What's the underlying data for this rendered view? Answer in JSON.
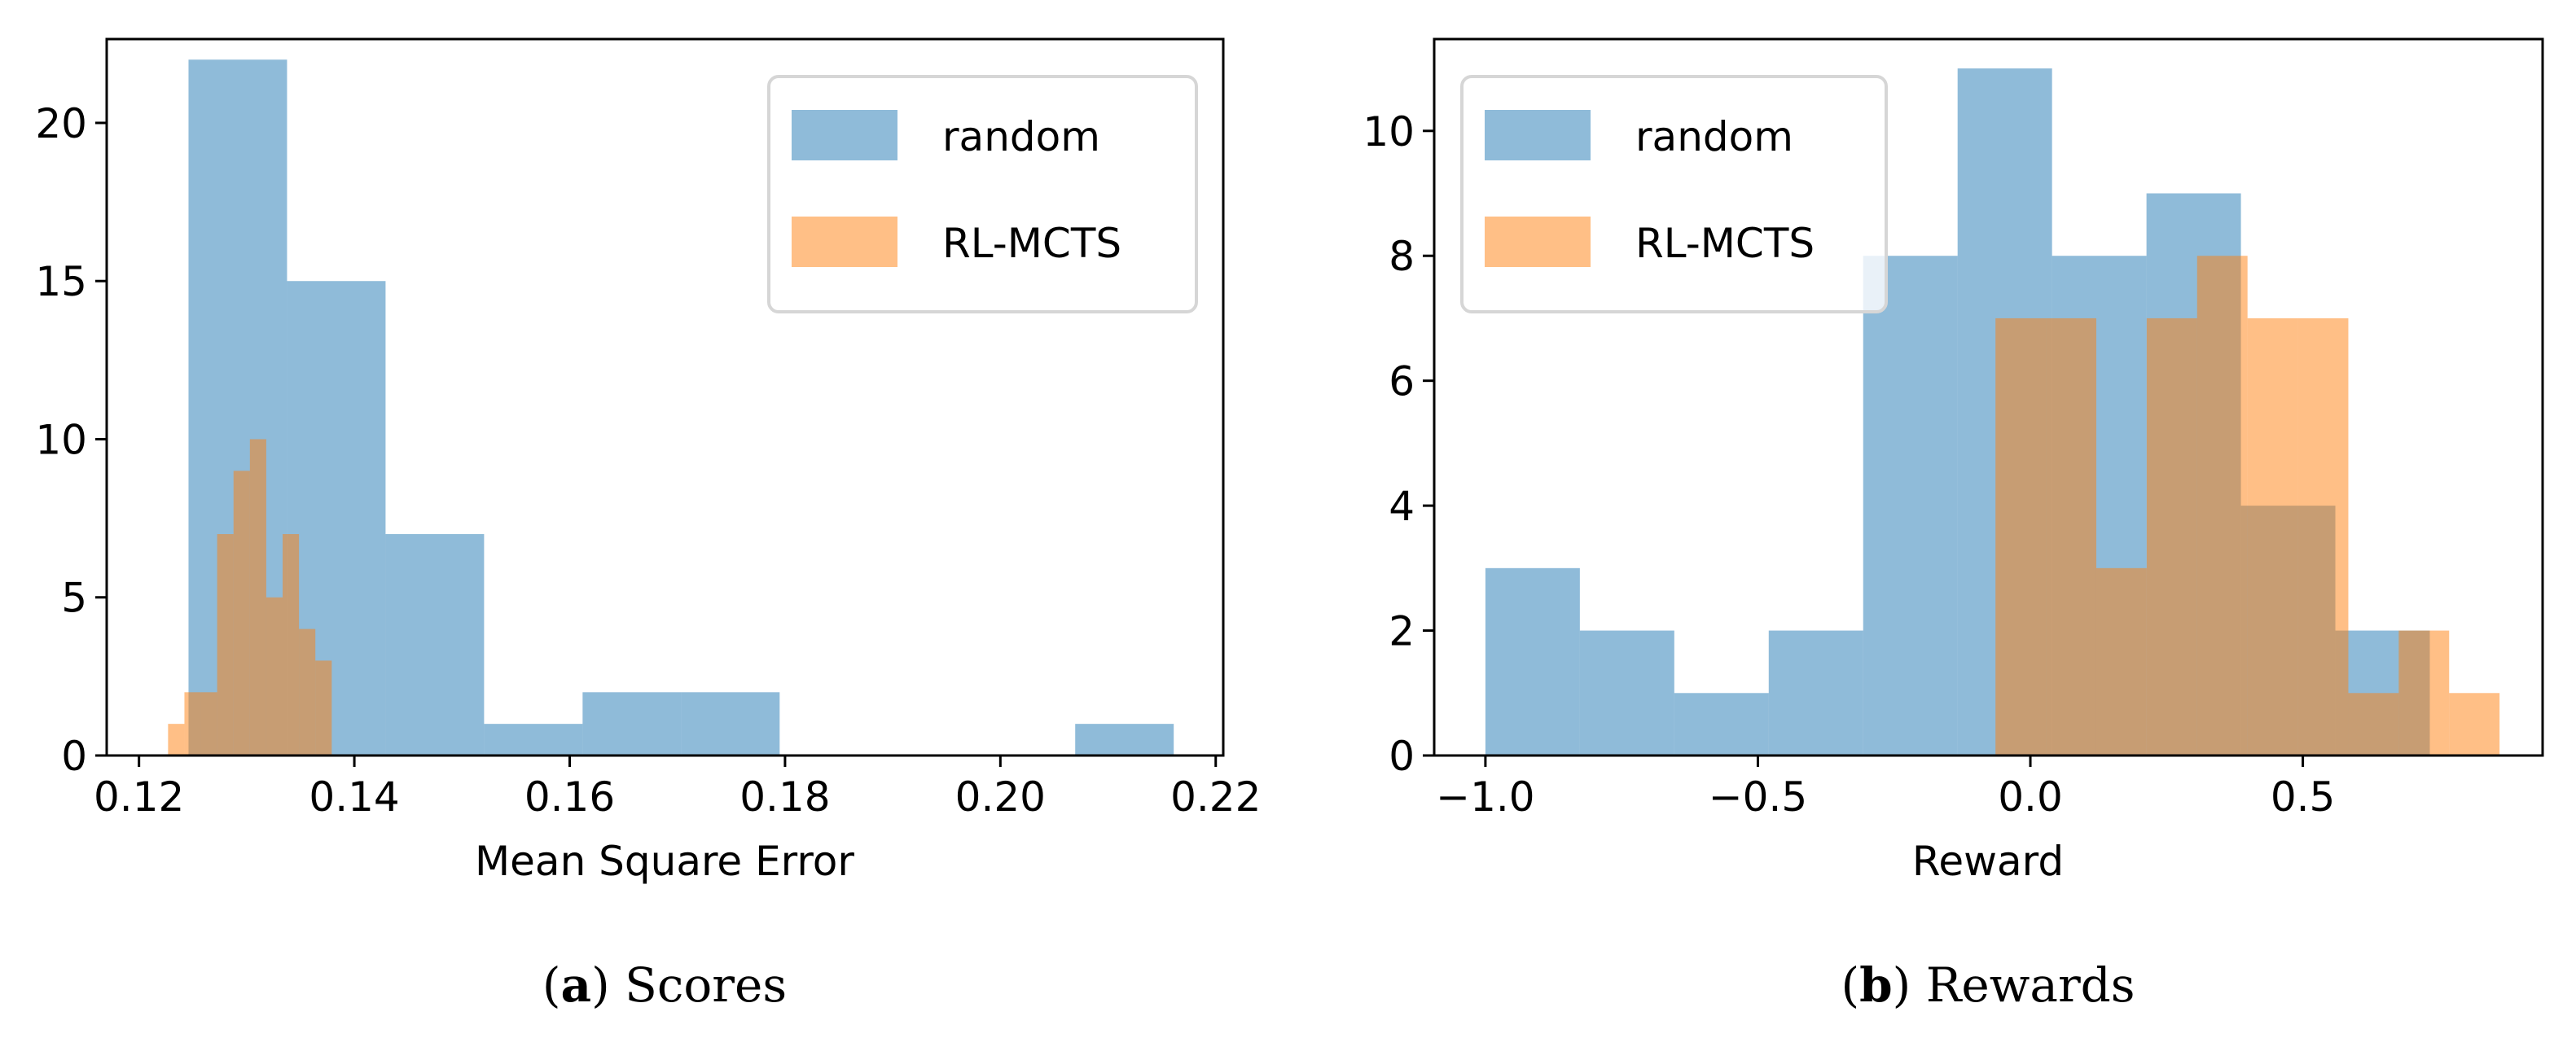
{
  "chart_data": [
    {
      "type": "histogram",
      "xlabel": "Mean Square Error",
      "ylabel": "",
      "xlim": [
        0.117,
        0.2207
      ],
      "ylim": [
        0,
        22.65
      ],
      "xticks": [
        "0.12",
        "0.14",
        "0.16",
        "0.18",
        "0.20",
        "0.22"
      ],
      "xtick_values": [
        0.12,
        0.14,
        0.16,
        0.18,
        0.2,
        0.22
      ],
      "yticks": [
        "0",
        "5",
        "10",
        "15",
        "20"
      ],
      "ytick_values": [
        0,
        5,
        10,
        15,
        20
      ],
      "grid": false,
      "legend": "top-right",
      "caption_label": "a",
      "caption_text": "Scores",
      "series": [
        {
          "name": "random",
          "color": "#1f77b4",
          "alpha": 0.5,
          "bin_start": 0.1246,
          "bin_width": 0.00915,
          "counts": [
            22,
            15,
            7,
            1,
            2,
            2,
            0,
            0,
            0,
            1
          ]
        },
        {
          "name": "RL-MCTS",
          "color": "#ff7f0e",
          "alpha": 0.5,
          "bin_start": 0.1227,
          "bin_width": 0.00152,
          "counts": [
            1,
            2,
            2,
            7,
            9,
            10,
            5,
            7,
            4,
            3
          ]
        }
      ]
    },
    {
      "type": "histogram",
      "xlabel": "Reward",
      "ylabel": "",
      "xlim": [
        -1.094,
        0.94
      ],
      "ylim": [
        0,
        11.47
      ],
      "xticks": [
        "−1.0",
        "−0.5",
        "0.0",
        "0.5"
      ],
      "xtick_values": [
        -1.0,
        -0.5,
        0.0,
        0.5
      ],
      "yticks": [
        "0",
        "2",
        "4",
        "6",
        "8",
        "10"
      ],
      "ytick_values": [
        0,
        2,
        4,
        6,
        8,
        10
      ],
      "grid": false,
      "legend": "top-left",
      "caption_label": "b",
      "caption_text": "Rewards",
      "series": [
        {
          "name": "random",
          "color": "#1f77b4",
          "alpha": 0.5,
          "bin_start": -1.0,
          "bin_width": 0.1733,
          "counts": [
            3,
            2,
            1,
            2,
            8,
            11,
            8,
            9,
            4,
            2
          ]
        },
        {
          "name": "RL-MCTS",
          "color": "#ff7f0e",
          "alpha": 0.5,
          "bin_start": -0.064,
          "bin_width": 0.0925,
          "counts": [
            7,
            7,
            3,
            7,
            8,
            7,
            7,
            1,
            2,
            1
          ]
        }
      ]
    }
  ]
}
